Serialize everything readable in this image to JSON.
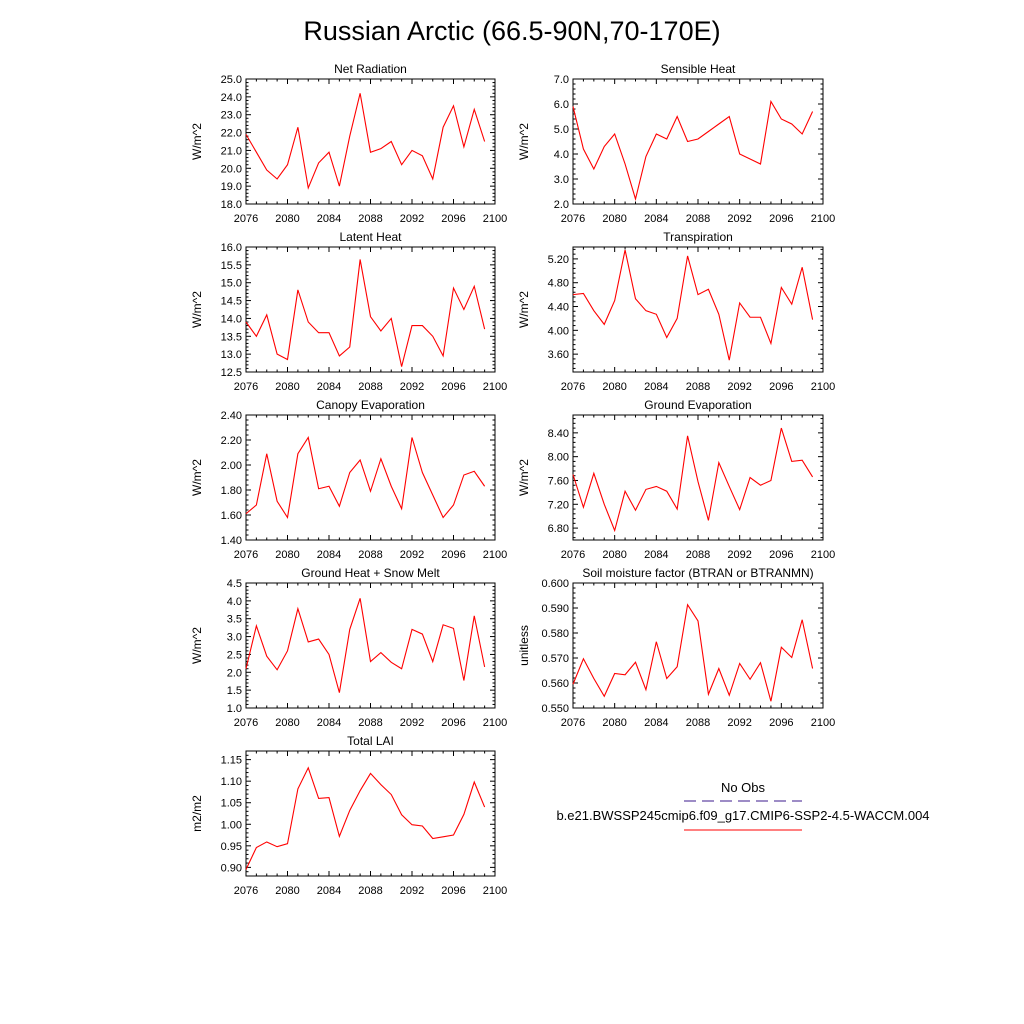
{
  "figure": {
    "title": "Russian Arctic (66.5-90N,70-170E)",
    "legend": {
      "entries": [
        {
          "label": "No Obs",
          "color": "#3b1a8c",
          "style": "dashed"
        },
        {
          "label": "b.e21.BWSSP245cmip6.f09_g17.CMIP6-SSP2-4.5-WACCM.004",
          "color": "#ff0000",
          "style": "solid"
        }
      ]
    }
  },
  "colors": {
    "series": "#ff0000",
    "axis": "#000000",
    "obs": "#3b1a8c"
  },
  "chart_data": [
    {
      "type": "line",
      "title": "Net Radiation",
      "xlabel": "",
      "ylabel": "W/m^2",
      "xlim": [
        2076,
        2100
      ],
      "xticks": [
        2076,
        2080,
        2084,
        2088,
        2092,
        2096,
        2100
      ],
      "ylim": [
        18,
        25
      ],
      "yticks": [
        18,
        19,
        20,
        21,
        22,
        23,
        24,
        25
      ],
      "ydecimals": 1,
      "x": [
        2076,
        2077,
        2078,
        2079,
        2080,
        2081,
        2082,
        2083,
        2084,
        2085,
        2086,
        2087,
        2088,
        2089,
        2090,
        2091,
        2092,
        2093,
        2094,
        2095,
        2096,
        2097,
        2098,
        2099
      ],
      "series": [
        {
          "values": [
            21.9,
            20.9,
            19.9,
            19.4,
            20.2,
            22.3,
            18.9,
            20.3,
            20.9,
            19.0,
            21.8,
            24.2,
            20.9,
            21.1,
            21.5,
            20.2,
            21.0,
            20.7,
            19.4,
            22.3,
            23.5,
            21.2,
            23.3,
            21.5
          ]
        }
      ]
    },
    {
      "type": "line",
      "title": "Sensible Heat",
      "xlabel": "",
      "ylabel": "W/m^2",
      "xlim": [
        2076,
        2100
      ],
      "xticks": [
        2076,
        2080,
        2084,
        2088,
        2092,
        2096,
        2100
      ],
      "ylim": [
        2,
        7
      ],
      "yticks": [
        2,
        3,
        4,
        5,
        6,
        7
      ],
      "ydecimals": 1,
      "x": [
        2076,
        2077,
        2078,
        2079,
        2080,
        2081,
        2082,
        2083,
        2084,
        2085,
        2086,
        2087,
        2088,
        2089,
        2090,
        2091,
        2092,
        2093,
        2094,
        2095,
        2096,
        2097,
        2098,
        2099
      ],
      "series": [
        {
          "values": [
            5.9,
            4.2,
            3.4,
            4.3,
            4.8,
            3.6,
            2.2,
            3.9,
            4.8,
            4.6,
            5.5,
            4.5,
            4.6,
            4.9,
            5.2,
            5.5,
            4.0,
            3.8,
            3.6,
            6.1,
            5.4,
            5.2,
            4.8,
            5.7
          ]
        }
      ]
    },
    {
      "type": "line",
      "title": "Latent Heat",
      "xlabel": "",
      "ylabel": "W/m^2",
      "xlim": [
        2076,
        2100
      ],
      "xticks": [
        2076,
        2080,
        2084,
        2088,
        2092,
        2096,
        2100
      ],
      "ylim": [
        12.5,
        16
      ],
      "yticks": [
        12.5,
        13,
        13.5,
        14,
        14.5,
        15,
        15.5,
        16
      ],
      "ydecimals": 1,
      "x": [
        2076,
        2077,
        2078,
        2079,
        2080,
        2081,
        2082,
        2083,
        2084,
        2085,
        2086,
        2087,
        2088,
        2089,
        2090,
        2091,
        2092,
        2093,
        2094,
        2095,
        2096,
        2097,
        2098,
        2099
      ],
      "series": [
        {
          "values": [
            13.9,
            13.5,
            14.1,
            13.0,
            12.85,
            14.8,
            13.9,
            13.6,
            13.6,
            12.95,
            13.2,
            15.65,
            14.05,
            13.65,
            14.0,
            12.65,
            13.8,
            13.8,
            13.5,
            12.95,
            14.85,
            14.25,
            14.9,
            13.7
          ]
        }
      ]
    },
    {
      "type": "line",
      "title": "Transpiration",
      "xlabel": "",
      "ylabel": "W/m^2",
      "xlim": [
        2076,
        2100
      ],
      "xticks": [
        2076,
        2080,
        2084,
        2088,
        2092,
        2096,
        2100
      ],
      "ylim": [
        3.3,
        5.4
      ],
      "yticks": [
        3.6,
        4.0,
        4.4,
        4.8,
        5.2
      ],
      "ydecimals": 2,
      "x": [
        2076,
        2077,
        2078,
        2079,
        2080,
        2081,
        2082,
        2083,
        2084,
        2085,
        2086,
        2087,
        2088,
        2089,
        2090,
        2091,
        2092,
        2093,
        2094,
        2095,
        2096,
        2097,
        2098,
        2099
      ],
      "series": [
        {
          "values": [
            4.6,
            4.62,
            4.33,
            4.1,
            4.5,
            5.35,
            4.53,
            4.33,
            4.27,
            3.88,
            4.2,
            5.25,
            4.6,
            4.69,
            4.27,
            3.5,
            4.46,
            4.22,
            4.22,
            3.78,
            4.72,
            4.44,
            5.06,
            4.18
          ]
        }
      ]
    },
    {
      "type": "line",
      "title": "Canopy Evaporation",
      "xlabel": "",
      "ylabel": "W/m^2",
      "xlim": [
        2076,
        2100
      ],
      "xticks": [
        2076,
        2080,
        2084,
        2088,
        2092,
        2096,
        2100
      ],
      "ylim": [
        1.4,
        2.4
      ],
      "yticks": [
        1.4,
        1.6,
        1.8,
        2.0,
        2.2,
        2.4
      ],
      "ydecimals": 2,
      "x": [
        2076,
        2077,
        2078,
        2079,
        2080,
        2081,
        2082,
        2083,
        2084,
        2085,
        2086,
        2087,
        2088,
        2089,
        2090,
        2091,
        2092,
        2093,
        2094,
        2095,
        2096,
        2097,
        2098,
        2099
      ],
      "series": [
        {
          "values": [
            1.61,
            1.68,
            2.09,
            1.71,
            1.58,
            2.09,
            2.22,
            1.81,
            1.83,
            1.67,
            1.94,
            2.04,
            1.79,
            2.05,
            1.83,
            1.65,
            2.22,
            1.94,
            1.76,
            1.58,
            1.68,
            1.92,
            1.95,
            1.83
          ]
        }
      ]
    },
    {
      "type": "line",
      "title": "Ground Evaporation",
      "xlabel": "",
      "ylabel": "W/m^2",
      "xlim": [
        2076,
        2100
      ],
      "xticks": [
        2076,
        2080,
        2084,
        2088,
        2092,
        2096,
        2100
      ],
      "ylim": [
        6.6,
        8.7
      ],
      "yticks": [
        6.8,
        7.2,
        7.6,
        8.0,
        8.4
      ],
      "ydecimals": 2,
      "x": [
        2076,
        2077,
        2078,
        2079,
        2080,
        2081,
        2082,
        2083,
        2084,
        2085,
        2086,
        2087,
        2088,
        2089,
        2090,
        2091,
        2092,
        2093,
        2094,
        2095,
        2096,
        2097,
        2098,
        2099
      ],
      "series": [
        {
          "values": [
            7.7,
            7.15,
            7.72,
            7.2,
            6.76,
            7.42,
            7.1,
            7.45,
            7.5,
            7.42,
            7.12,
            8.35,
            7.58,
            6.93,
            7.9,
            7.5,
            7.11,
            7.65,
            7.52,
            7.6,
            8.48,
            7.92,
            7.94,
            7.66
          ]
        }
      ]
    },
    {
      "type": "line",
      "title": "Ground Heat + Snow Melt",
      "xlabel": "",
      "ylabel": "W/m^2",
      "xlim": [
        2076,
        2100
      ],
      "xticks": [
        2076,
        2080,
        2084,
        2088,
        2092,
        2096,
        2100
      ],
      "ylim": [
        1.0,
        4.5
      ],
      "yticks": [
        1.0,
        1.5,
        2.0,
        2.5,
        3.0,
        3.5,
        4.0,
        4.5
      ],
      "ydecimals": 1,
      "x": [
        2076,
        2077,
        2078,
        2079,
        2080,
        2081,
        2082,
        2083,
        2084,
        2085,
        2086,
        2087,
        2088,
        2089,
        2090,
        2091,
        2092,
        2093,
        2094,
        2095,
        2096,
        2097,
        2098,
        2099
      ],
      "series": [
        {
          "values": [
            2.1,
            3.3,
            2.45,
            2.07,
            2.6,
            3.78,
            2.85,
            2.93,
            2.5,
            1.43,
            3.2,
            4.07,
            2.3,
            2.55,
            2.28,
            2.1,
            3.2,
            3.07,
            2.3,
            3.33,
            3.23,
            1.77,
            3.58,
            2.15
          ]
        }
      ]
    },
    {
      "type": "line",
      "title": "Soil moisture factor (BTRAN or BTRANMN)",
      "xlabel": "",
      "ylabel": "unitless",
      "xlim": [
        2076,
        2100
      ],
      "xticks": [
        2076,
        2080,
        2084,
        2088,
        2092,
        2096,
        2100
      ],
      "ylim": [
        0.55,
        0.6
      ],
      "yticks": [
        0.55,
        0.56,
        0.57,
        0.58,
        0.59,
        0.6
      ],
      "ydecimals": 3,
      "x": [
        2076,
        2077,
        2078,
        2079,
        2080,
        2081,
        2082,
        2083,
        2084,
        2085,
        2086,
        2087,
        2088,
        2089,
        2090,
        2091,
        2092,
        2093,
        2094,
        2095,
        2096,
        2097,
        2098,
        2099
      ],
      "series": [
        {
          "values": [
            0.5595,
            0.5697,
            0.5618,
            0.5547,
            0.5638,
            0.5633,
            0.5683,
            0.5573,
            0.5765,
            0.5618,
            0.5665,
            0.5913,
            0.5848,
            0.5555,
            0.5658,
            0.5551,
            0.5678,
            0.5615,
            0.5681,
            0.5527,
            0.5743,
            0.5702,
            0.5853,
            0.5658
          ]
        }
      ]
    },
    {
      "type": "line",
      "title": "Total LAI",
      "xlabel": "",
      "ylabel": "m2/m2",
      "xlim": [
        2076,
        2100
      ],
      "xticks": [
        2076,
        2080,
        2084,
        2088,
        2092,
        2096,
        2100
      ],
      "ylim": [
        0.88,
        1.17
      ],
      "yticks": [
        0.9,
        0.95,
        1.0,
        1.05,
        1.1,
        1.15
      ],
      "ydecimals": 2,
      "x": [
        2076,
        2077,
        2078,
        2079,
        2080,
        2081,
        2082,
        2083,
        2084,
        2085,
        2086,
        2087,
        2088,
        2089,
        2090,
        2091,
        2092,
        2093,
        2094,
        2095,
        2096,
        2097,
        2098,
        2099
      ],
      "series": [
        {
          "values": [
            0.895,
            0.946,
            0.959,
            0.948,
            0.955,
            1.082,
            1.131,
            1.06,
            1.062,
            0.972,
            1.032,
            1.078,
            1.118,
            1.092,
            1.069,
            1.022,
            0.999,
            0.996,
            0.967,
            0.971,
            0.975,
            1.023,
            1.098,
            1.04
          ]
        }
      ]
    }
  ]
}
